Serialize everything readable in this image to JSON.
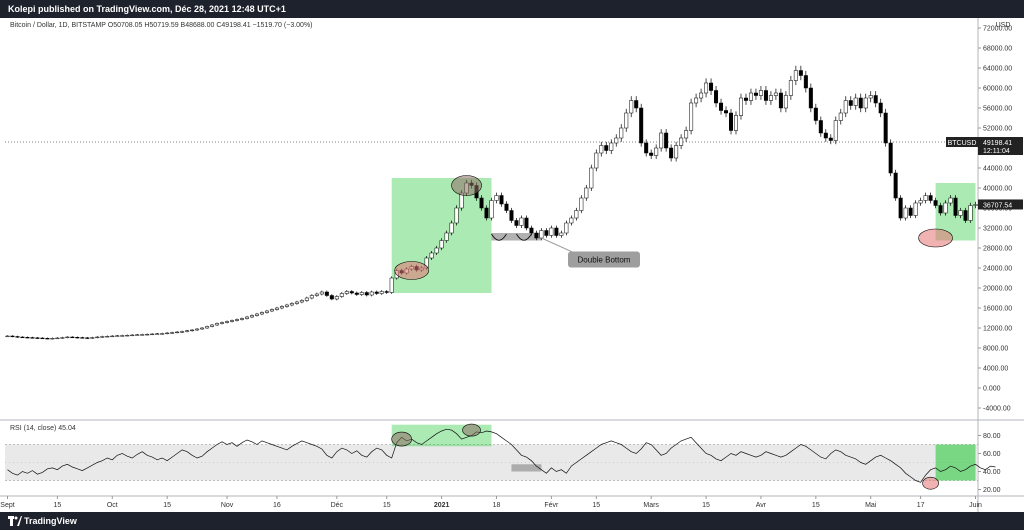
{
  "header": {
    "publisher_line": "Kolepi published on TradingView.com, Déc 28, 2021 12:48 UTC+1"
  },
  "footer": {
    "brand": "TradingView"
  },
  "colors": {
    "bull": "#ffffff",
    "bear": "#000000",
    "highlight": "#2ecc40",
    "circle_red": "#e57373",
    "circle_brown": "#8d6e63",
    "grid": "#f0f3fa"
  },
  "chart_data": [
    {
      "type": "candlestick",
      "symbol_line": "Bitcoin / Dollar, 1D, BITSTAMP  O50708.05  H50719.59  B48688.00  C49198.41  −1519.70 (−3.00%)",
      "currency": "USD",
      "ylim": [
        -6000,
        74000
      ],
      "y_ticks": [
        "72000.00",
        "68000.00",
        "64000.00",
        "60000.00",
        "56000.00",
        "52000.00",
        "48000.00",
        "44000.00",
        "40000.00",
        "36000.00",
        "32000.00",
        "28000.00",
        "24000.00",
        "20000.00",
        "16000.00",
        "12000.00",
        "8000.00",
        "4000.00",
        "0.000",
        "-4000.00"
      ],
      "y_tick_values": [
        72000,
        68000,
        64000,
        60000,
        56000,
        52000,
        48000,
        44000,
        40000,
        36000,
        32000,
        28000,
        24000,
        20000,
        16000,
        12000,
        8000,
        4000,
        0,
        -4000
      ],
      "last_price": {
        "label": "BTCUSD",
        "value": "49198.41",
        "value_num": 49198.41,
        "countdown": "12:11:04"
      },
      "current_price": {
        "value": "36707.54",
        "value_num": 36707.54
      },
      "annotation": "Double Bottom",
      "closes": [
        10400,
        10300,
        10200,
        10150,
        10100,
        10050,
        10000,
        9950,
        9900,
        9950,
        10000,
        10100,
        10200,
        10150,
        10100,
        10050,
        10000,
        10100,
        10200,
        10300,
        10350,
        10400,
        10450,
        10500,
        10550,
        10600,
        10650,
        10700,
        10750,
        10800,
        10850,
        10900,
        11000,
        11100,
        11200,
        11300,
        11450,
        11600,
        11800,
        12000,
        12300,
        12600,
        12900,
        13100,
        13300,
        13500,
        13700,
        13900,
        14200,
        14500,
        14800,
        15100,
        15400,
        15700,
        16000,
        16300,
        16600,
        16900,
        17200,
        17500,
        18000,
        18500,
        18800,
        19200,
        18500,
        17800,
        18300,
        18900,
        19300,
        19000,
        18700,
        19100,
        18600,
        19200,
        18900,
        19300,
        19100,
        22000,
        23500,
        23000,
        23800,
        24300,
        23600,
        24000,
        26000,
        27000,
        28000,
        29500,
        31000,
        33000,
        36000,
        39000,
        41000,
        40500,
        38000,
        36000,
        34000,
        37500,
        38500,
        36800,
        35500,
        33500,
        32500,
        34000,
        32000,
        31000,
        30000,
        31500,
        30500,
        32000,
        30500,
        31000,
        33000,
        34000,
        35500,
        38000,
        40000,
        44000,
        47000,
        48500,
        47500,
        49000,
        50000,
        52000,
        55000,
        57500,
        56000,
        49000,
        47000,
        46500,
        48000,
        51000,
        48000,
        46000,
        48500,
        50000,
        51500,
        57000,
        58000,
        59000,
        61000,
        59500,
        57000,
        55500,
        55000,
        51500,
        54500,
        58000,
        57500,
        59000,
        58500,
        59500,
        57500,
        58500,
        59000,
        56000,
        58500,
        61500,
        63500,
        62500,
        60000,
        56000,
        53500,
        51000,
        50000,
        49500,
        53500,
        55000,
        57500,
        56500,
        58000,
        56000,
        58000,
        58500,
        57000,
        55000,
        49000,
        43000,
        38000,
        34000,
        36000,
        34500,
        37000,
        37500,
        38500,
        37500,
        36500,
        35000,
        37000,
        38000,
        34500,
        35500,
        33500,
        36500,
        36700
      ],
      "x_labels": [
        "Sept",
        "15",
        "Oct",
        "15",
        "Nov",
        "16",
        "Déc",
        "15",
        "2021",
        "18",
        "Févr",
        "15",
        "Mars",
        "15",
        "Avr",
        "15",
        "Mai",
        "17",
        "Juin"
      ],
      "rsi": {
        "title": "RSI (14, close)",
        "value": "45.04",
        "ylim": [
          15,
          95
        ],
        "y_ticks": [
          "80.00",
          "60.00",
          "40.00",
          "20.00"
        ],
        "y_tick_values": [
          80,
          60,
          40,
          20
        ],
        "band": [
          30,
          70
        ],
        "mid": 50,
        "values": [
          42,
          38,
          36,
          40,
          38,
          41,
          37,
          39,
          43,
          44,
          42,
          46,
          48,
          45,
          43,
          41,
          44,
          47,
          50,
          52,
          55,
          53,
          58,
          60,
          57,
          55,
          59,
          62,
          58,
          56,
          53,
          55,
          52,
          56,
          60,
          64,
          62,
          58,
          55,
          57,
          62,
          66,
          70,
          73,
          70,
          72,
          68,
          72,
          75,
          73,
          70,
          74,
          72,
          70,
          68,
          66,
          64,
          68,
          71,
          74,
          72,
          70,
          68,
          65,
          58,
          55,
          62,
          66,
          64,
          60,
          63,
          58,
          56,
          62,
          66,
          64,
          58,
          55,
          72,
          78,
          74,
          76,
          72,
          70,
          74,
          78,
          82,
          85,
          87,
          86,
          82,
          76,
          78,
          80,
          84,
          83,
          85,
          84,
          82,
          78,
          74,
          70,
          64,
          58,
          56,
          52,
          46,
          42,
          38,
          44,
          40,
          42,
          38,
          46,
          50,
          54,
          58,
          62,
          66,
          70,
          72,
          74,
          72,
          70,
          66,
          62,
          60,
          65,
          72,
          70,
          64,
          58,
          60,
          66,
          70,
          74,
          76,
          78,
          72,
          66,
          60,
          58,
          54,
          52,
          56,
          60,
          58,
          62,
          60,
          58,
          56,
          58,
          62,
          60,
          58,
          56,
          58,
          62,
          66,
          70,
          68,
          64,
          60,
          56,
          54,
          60,
          64,
          62,
          58,
          56,
          54,
          50,
          48,
          52,
          56,
          58,
          55,
          52,
          48,
          44,
          38,
          34,
          30,
          28,
          36,
          42,
          44,
          40,
          42,
          46,
          44,
          40,
          42,
          46,
          48,
          44,
          42,
          46,
          45
        ]
      }
    }
  ]
}
